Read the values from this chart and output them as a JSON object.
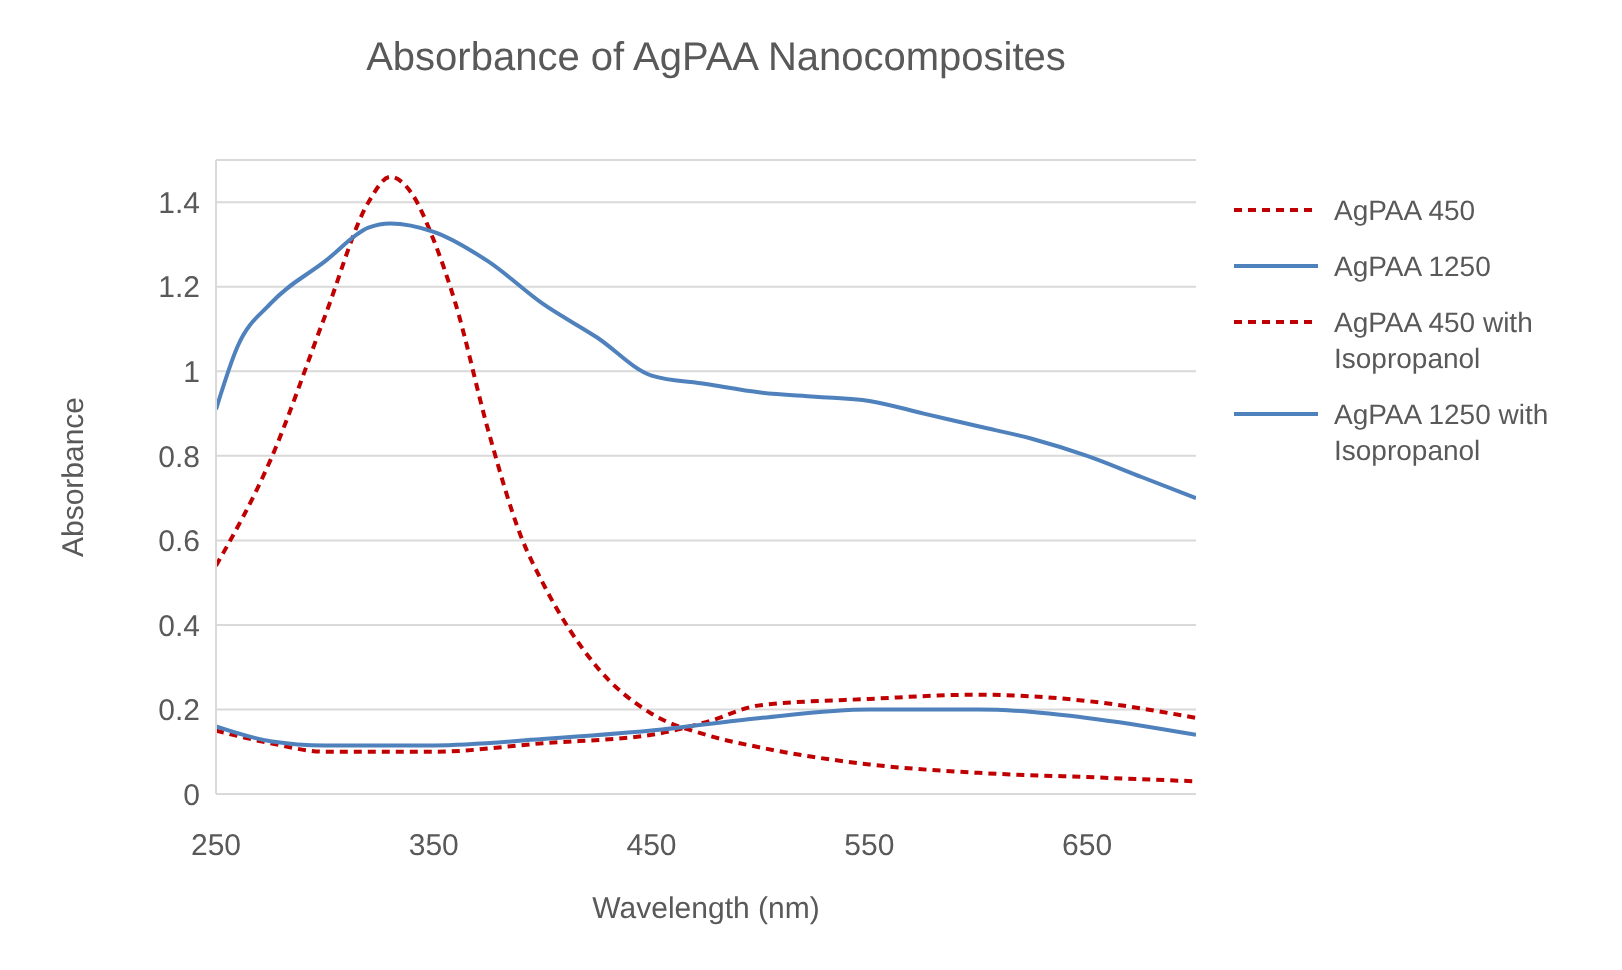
{
  "chart_data": {
    "type": "line",
    "title": "Absorbance of AgPAA Nanocomposites",
    "xlabel": "Wavelength (nm)",
    "ylabel": "Absorbance",
    "xlim": [
      250,
      700
    ],
    "xticks": [
      250,
      350,
      450,
      550,
      650
    ],
    "ylim": [
      0,
      1.5
    ],
    "yticks": [
      0,
      0.2,
      0.4,
      0.6,
      0.8,
      1,
      1.2,
      1.4
    ],
    "grid": "y",
    "legend": "top right",
    "marker": "none",
    "series": [
      {
        "name": "AgPAA 450",
        "color": "#c00000",
        "line_style": "dashed",
        "x": [
          250,
          275,
          300,
          320,
          330,
          340,
          350,
          360,
          375,
          390,
          400,
          425,
          450,
          475,
          500,
          550,
          600,
          650,
          700
        ],
        "values": [
          0.54,
          0.79,
          1.13,
          1.4,
          1.46,
          1.42,
          1.31,
          1.16,
          0.86,
          0.61,
          0.5,
          0.3,
          0.19,
          0.14,
          0.11,
          0.07,
          0.05,
          0.04,
          0.03
        ]
      },
      {
        "name": "AgPAA 1250",
        "color": "#4f81bd",
        "line_style": "solid",
        "x": [
          250,
          260,
          275,
          300,
          320,
          330,
          350,
          375,
          400,
          425,
          450,
          475,
          500,
          525,
          550,
          575,
          600,
          625,
          650,
          675,
          700
        ],
        "values": [
          0.91,
          1.06,
          1.16,
          1.26,
          1.34,
          1.35,
          1.33,
          1.26,
          1.16,
          1.08,
          0.99,
          0.97,
          0.95,
          0.94,
          0.93,
          0.9,
          0.87,
          0.84,
          0.8,
          0.75,
          0.7
        ]
      },
      {
        "name": "AgPAA 450 with Isopropanol",
        "color": "#c00000",
        "line_style": "dashed",
        "x": [
          250,
          275,
          300,
          350,
          400,
          450,
          475,
          500,
          550,
          600,
          650,
          700
        ],
        "values": [
          0.15,
          0.12,
          0.1,
          0.1,
          0.12,
          0.14,
          0.17,
          0.21,
          0.225,
          0.235,
          0.22,
          0.18
        ]
      },
      {
        "name": "AgPAA 1250 with Isopropanol",
        "color": "#4f81bd",
        "line_style": "solid",
        "x": [
          250,
          275,
          300,
          350,
          400,
          450,
          500,
          550,
          600,
          650,
          700
        ],
        "values": [
          0.16,
          0.125,
          0.115,
          0.115,
          0.13,
          0.15,
          0.18,
          0.2,
          0.2,
          0.18,
          0.14
        ]
      }
    ]
  }
}
